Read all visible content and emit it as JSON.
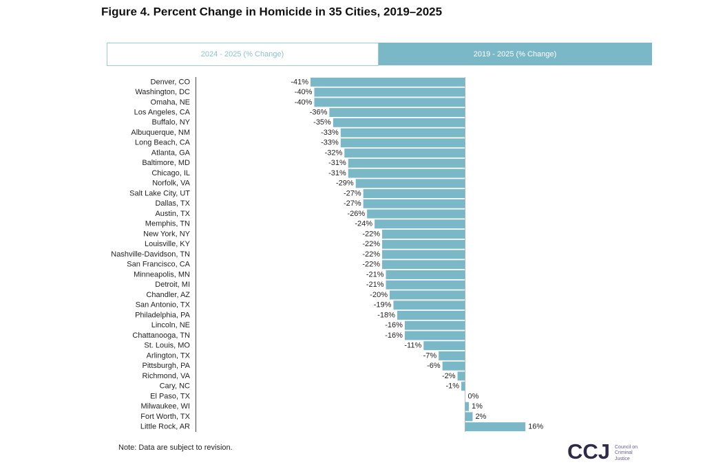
{
  "chart_data": {
    "type": "bar",
    "orientation": "horizontal",
    "title": "Figure 4. Percent Change in Homicide in 35 Cities, 2019–2025",
    "categories": [
      "Denver, CO",
      "Washington, DC",
      "Omaha, NE",
      "Los Angeles, CA",
      "Buffalo, NY",
      "Albuquerque, NM",
      "Long Beach, CA",
      "Atlanta, GA",
      "Baltimore, MD",
      "Chicago, IL",
      "Norfolk, VA",
      "Salt Lake City, UT",
      "Dallas, TX",
      "Austin, TX",
      "Memphis, TN",
      "New York, NY",
      "Louisville, KY",
      "Nashville-Davidson, TN",
      "San Francisco, CA",
      "Minneapolis, MN",
      "Detroit, MI",
      "Chandler, AZ",
      "San Antonio, TX",
      "Philadelphia, PA",
      "Lincoln, NE",
      "Chattanooga, TN",
      "St. Louis, MO",
      "Arlington, TX",
      "Pittsburgh, PA",
      "Richmond, VA",
      "Cary, NC",
      "El Paso, TX",
      "Milwaukee, WI",
      "Fort Worth, TX",
      "Little Rock, AR"
    ],
    "values": [
      -41,
      -40,
      -40,
      -36,
      -35,
      -33,
      -33,
      -32,
      -31,
      -31,
      -29,
      -27,
      -27,
      -26,
      -24,
      -22,
      -22,
      -22,
      -22,
      -21,
      -21,
      -20,
      -19,
      -18,
      -16,
      -16,
      -11,
      -7,
      -6,
      -2,
      -1,
      0,
      1,
      2,
      16
    ],
    "value_labels": [
      "-41%",
      "-40%",
      "-40%",
      "-36%",
      "-35%",
      "-33%",
      "-33%",
      "-32%",
      "-31%",
      "-31%",
      "-29%",
      "-27%",
      "-27%",
      "-26%",
      "-24%",
      "-22%",
      "-22%",
      "-22%",
      "-22%",
      "-21%",
      "-21%",
      "-20%",
      "-19%",
      "-18%",
      "-16%",
      "-16%",
      "-11%",
      "-7%",
      "-6%",
      "-2%",
      "-1%",
      "0%",
      "1%",
      "2%",
      "16%"
    ],
    "color": "#7ab8c8"
  },
  "tabs": [
    "2024 - 2025 (% Change)",
    "2019 - 2025 (% Change)"
  ],
  "note": "Note: Data are subject to revision.",
  "logo": {
    "mark": "CCJ",
    "text": [
      "Council on",
      "Criminal",
      "Justice"
    ]
  }
}
